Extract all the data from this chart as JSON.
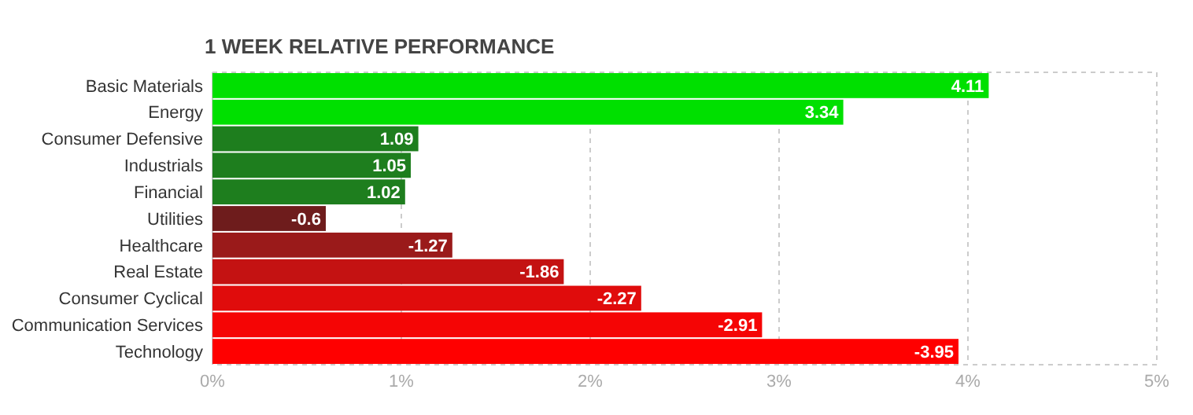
{
  "chart_data": {
    "type": "bar",
    "orientation": "horizontal",
    "title": "1 WEEK RELATIVE PERFORMANCE",
    "categories": [
      "Basic Materials",
      "Energy",
      "Consumer Defensive",
      "Industrials",
      "Financial",
      "Utilities",
      "Healthcare",
      "Real Estate",
      "Consumer Cyclical",
      "Communication Services",
      "Technology"
    ],
    "values": [
      4.11,
      3.34,
      1.09,
      1.05,
      1.02,
      -0.6,
      -1.27,
      -1.86,
      -2.27,
      -2.91,
      -3.95
    ],
    "base": [
      0,
      0,
      0,
      0,
      0,
      0.6,
      1.27,
      1.86,
      2.27,
      2.91,
      3.95
    ],
    "data_labels": true,
    "colors": [
      "#00e000",
      "#00e000",
      "#1e7e1e",
      "#1e7e1e",
      "#1e7e1e",
      "#6e1c1c",
      "#9a1a1a",
      "#c41212",
      "#e00c0c",
      "#f50505",
      "#ff0000"
    ],
    "xlim": [
      0,
      5
    ],
    "xticks": [
      {
        "value": 0,
        "label": "0%"
      },
      {
        "value": 1,
        "label": "1%"
      },
      {
        "value": 2,
        "label": "2%"
      },
      {
        "value": 3,
        "label": "3%"
      },
      {
        "value": 4,
        "label": "4%"
      },
      {
        "value": 5,
        "label": "5%"
      }
    ],
    "grid": "x"
  }
}
